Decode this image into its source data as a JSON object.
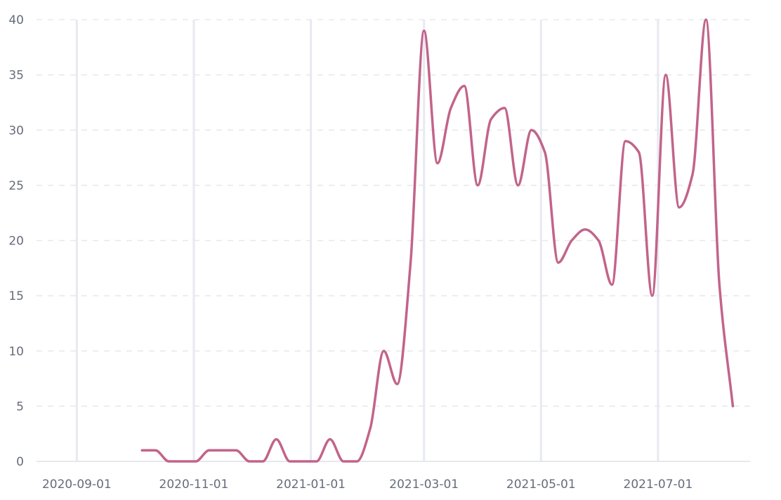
{
  "chart_data": {
    "type": "line",
    "title": "",
    "xlabel": "",
    "ylabel": "",
    "ylim": [
      0,
      40
    ],
    "xlim": [
      "2020-08-11",
      "2021-08-18"
    ],
    "y_ticks": [
      0,
      5,
      10,
      15,
      20,
      25,
      30,
      35,
      40
    ],
    "x_ticks": [
      "2020-09-01",
      "2020-11-01",
      "2021-01-01",
      "2021-03-01",
      "2021-05-01",
      "2021-07-01"
    ],
    "grid": {
      "horizontal": "dashed",
      "vertical": "solid at x ticks"
    },
    "legend": "none",
    "line_color": "#c2648a",
    "series": [
      {
        "x": [
          "2020-10-05",
          "2020-10-12",
          "2020-10-19",
          "2020-10-26",
          "2020-11-02",
          "2020-11-09",
          "2020-11-16",
          "2020-11-23",
          "2020-11-30",
          "2020-12-07",
          "2020-12-14",
          "2020-12-21",
          "2020-12-28",
          "2021-01-04",
          "2021-01-11",
          "2021-01-18",
          "2021-01-25",
          "2021-02-01",
          "2021-02-08",
          "2021-02-15",
          "2021-02-22",
          "2021-03-01",
          "2021-03-08",
          "2021-03-15",
          "2021-03-22",
          "2021-03-29",
          "2021-04-05",
          "2021-04-12",
          "2021-04-19",
          "2021-04-26",
          "2021-05-03",
          "2021-05-10",
          "2021-05-17",
          "2021-05-24",
          "2021-05-31",
          "2021-06-07",
          "2021-06-14",
          "2021-06-21",
          "2021-06-28",
          "2021-07-05",
          "2021-07-12",
          "2021-07-19",
          "2021-07-26",
          "2021-08-02",
          "2021-08-09"
        ],
        "y": [
          1,
          1,
          0,
          0,
          0,
          1,
          1,
          1,
          0,
          0,
          2,
          0,
          0,
          0,
          2,
          0,
          0,
          3,
          10,
          7,
          18,
          39,
          27,
          32,
          34,
          25,
          31,
          32,
          25,
          30,
          28,
          18,
          20,
          21,
          20,
          16,
          29,
          28,
          15,
          35,
          23,
          26,
          40,
          16,
          5
        ]
      }
    ]
  }
}
